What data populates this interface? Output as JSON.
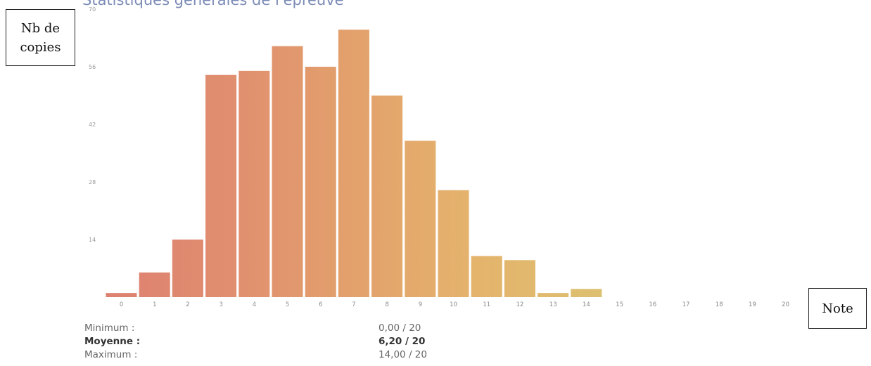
{
  "title": "Statistiques générales de l'épreuve",
  "ylabel": "Nb de copies",
  "xlabel": "Note",
  "chart_data": {
    "type": "bar",
    "title": "Statistiques générales de l'épreuve",
    "xlabel": "Note",
    "ylabel": "Nb de copies",
    "categories": [
      "0",
      "1",
      "2",
      "3",
      "4",
      "5",
      "6",
      "7",
      "8",
      "9",
      "10",
      "11",
      "12",
      "13",
      "14",
      "15",
      "16",
      "17",
      "18",
      "19",
      "20"
    ],
    "values": [
      1,
      6,
      14,
      54,
      55,
      61,
      56,
      65,
      49,
      38,
      26,
      10,
      9,
      1,
      2,
      0,
      0,
      0,
      0,
      0,
      0
    ],
    "yticks": [
      "14",
      "28",
      "42",
      "56",
      "70"
    ],
    "ylim": [
      0,
      70
    ],
    "grid": false,
    "colors": [
      "#de8070",
      "#e08e6f",
      "#e3a16c",
      "#e4b46c",
      "#dcc070"
    ]
  },
  "stats": [
    {
      "label": "Minimum :",
      "value": "0,00 / 20",
      "bold": false
    },
    {
      "label": "Moyenne :",
      "value": "6,20 / 20",
      "bold": true
    },
    {
      "label": "Maximum :",
      "value": "14,00 / 20",
      "bold": false
    }
  ]
}
